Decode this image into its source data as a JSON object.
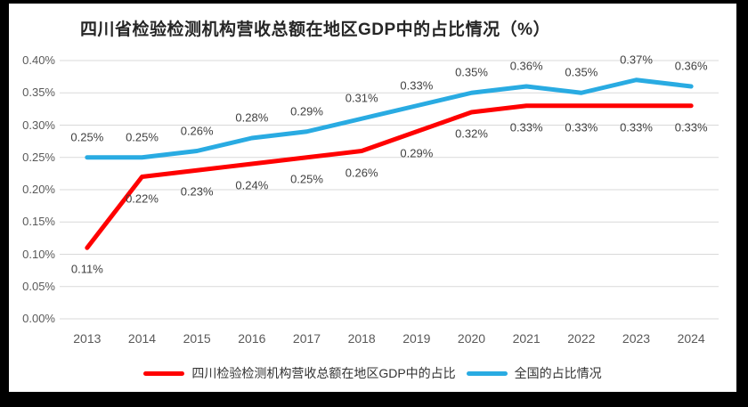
{
  "frame": {
    "background_color": "#000000",
    "panel_color": "#ffffff"
  },
  "chart_data": {
    "type": "line",
    "title": "四川省检验检测机构营收总额在地区GDP中的占比情况（%）",
    "categories": [
      "2013",
      "2014",
      "2015",
      "2016",
      "2017",
      "2018",
      "2019",
      "2020",
      "2021",
      "2022",
      "2023",
      "2024"
    ],
    "xlabel": "",
    "ylabel": "",
    "ylim": [
      0,
      0.4
    ],
    "y_tick_step": 0.05,
    "y_tick_labels": [
      "0.00%",
      "0.05%",
      "0.10%",
      "0.15%",
      "0.20%",
      "0.25%",
      "0.30%",
      "0.35%",
      "0.40%"
    ],
    "grid": true,
    "grid_color": "#d9d9d9",
    "legend_position": "bottom",
    "series": [
      {
        "name": "四川检验检测机构营收总额在地区GDP中的占比",
        "color": "#FF0000",
        "label_position": "below",
        "values": [
          0.11,
          0.22,
          0.23,
          0.24,
          0.25,
          0.26,
          0.29,
          0.32,
          0.33,
          0.33,
          0.33,
          0.33
        ],
        "labels": [
          "0.11%",
          "0.22%",
          "0.23%",
          "0.24%",
          "0.25%",
          "0.26%",
          "0.29%",
          "0.32%",
          "0.33%",
          "0.33%",
          "0.33%",
          "0.33%"
        ]
      },
      {
        "name": "全国的占比情况",
        "color": "#29ABE2",
        "label_position": "above",
        "values": [
          0.25,
          0.25,
          0.26,
          0.28,
          0.29,
          0.31,
          0.33,
          0.35,
          0.36,
          0.35,
          0.37,
          0.36
        ],
        "labels": [
          "0.25%",
          "0.25%",
          "0.26%",
          "0.28%",
          "0.29%",
          "0.31%",
          "0.33%",
          "0.35%",
          "0.36%",
          "0.35%",
          "0.37%",
          "0.36%"
        ]
      }
    ],
    "axis_label_color": "#595959",
    "data_label_color": "#404040"
  }
}
